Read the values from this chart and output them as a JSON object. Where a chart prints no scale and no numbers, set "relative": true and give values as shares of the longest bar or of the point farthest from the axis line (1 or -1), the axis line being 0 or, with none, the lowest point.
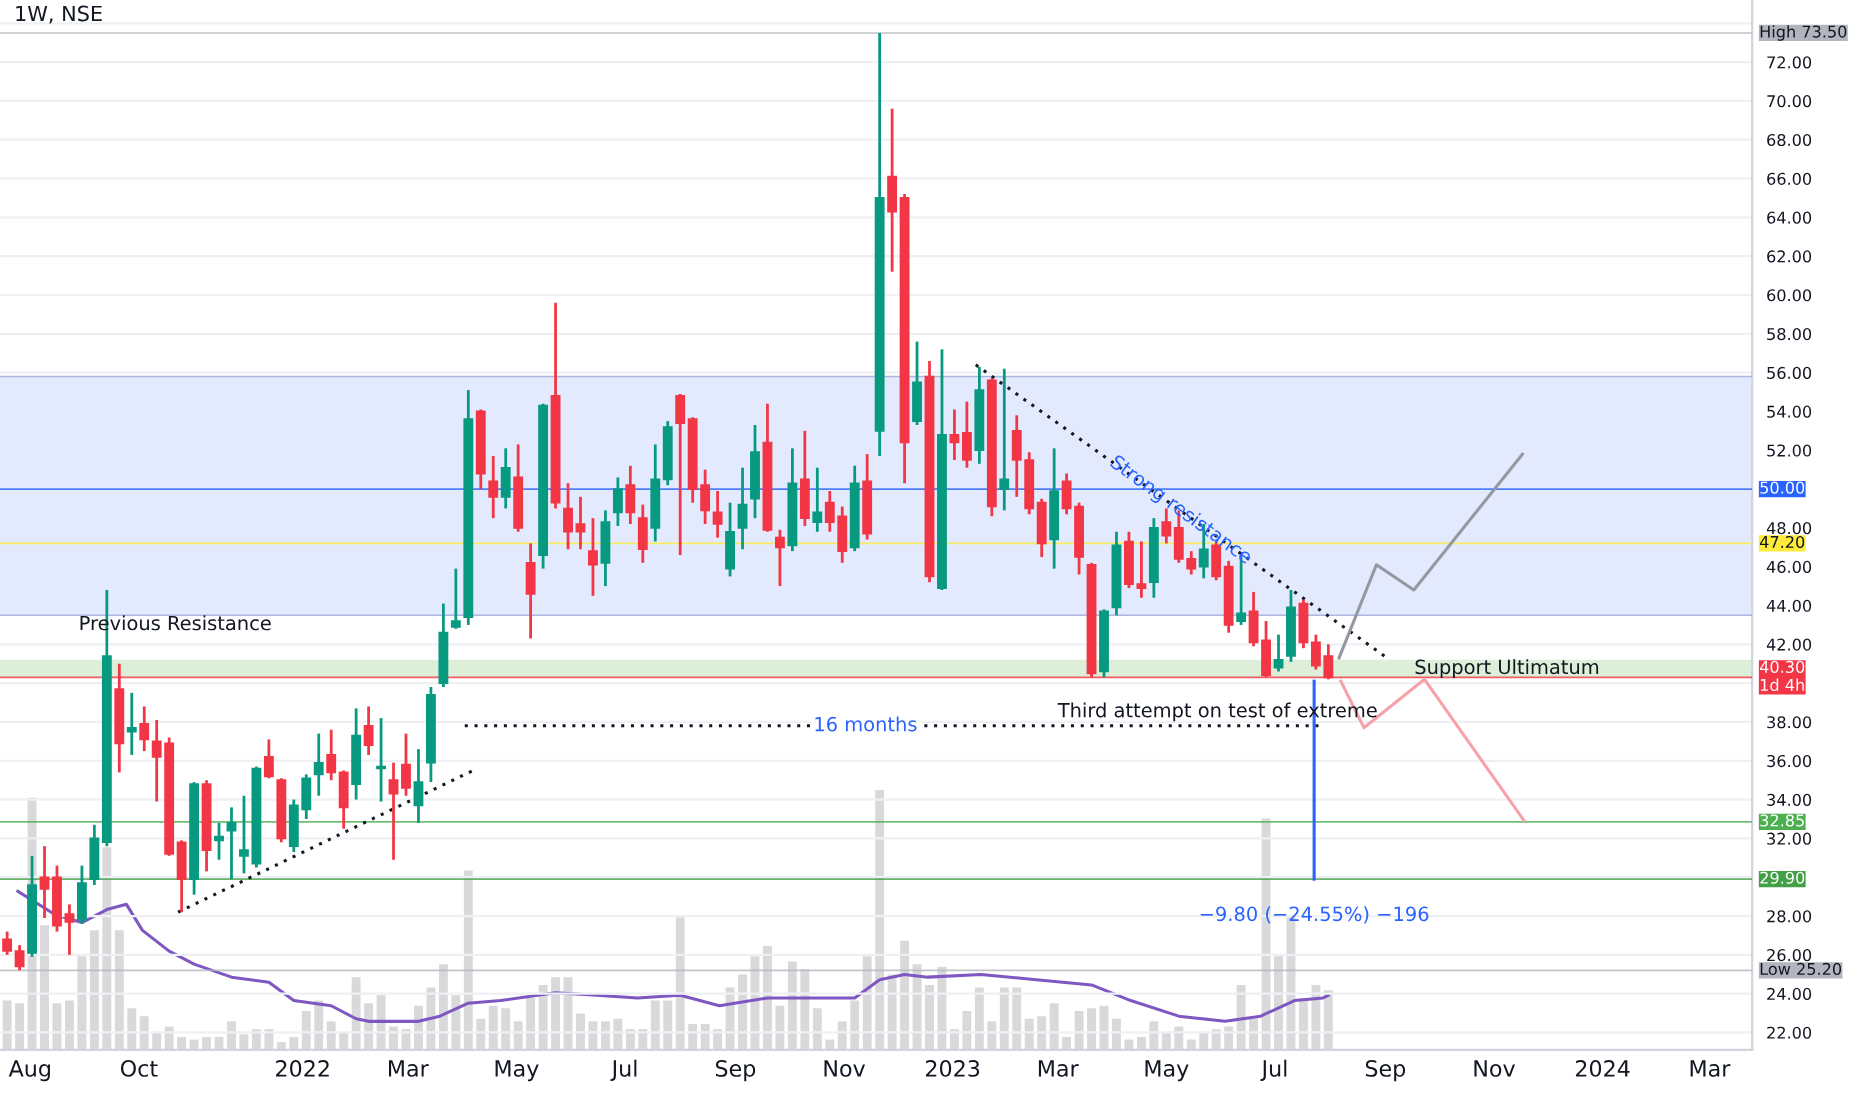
{
  "chart_data": [
    {
      "type": "candlestick",
      "title": "1W, NSE",
      "x": [
        "2021-07-19",
        "2021-07-26",
        "2021-08-02",
        "2021-08-09",
        "2021-08-16",
        "2021-08-23",
        "2021-08-30",
        "2021-09-06",
        "2021-09-13",
        "2021-09-20",
        "2021-09-27",
        "2021-10-04",
        "2021-10-11",
        "2021-10-18",
        "2021-10-25",
        "2021-11-01",
        "2021-11-08",
        "2021-11-15",
        "2021-11-22",
        "2021-11-29",
        "2021-12-06",
        "2021-12-13",
        "2021-12-20",
        "2021-12-27",
        "2022-01-03",
        "2022-01-10",
        "2022-01-17",
        "2022-01-24",
        "2022-01-31",
        "2022-02-07",
        "2022-02-14",
        "2022-02-21",
        "2022-02-28",
        "2022-03-07",
        "2022-03-14",
        "2022-03-21",
        "2022-03-28",
        "2022-04-04",
        "2022-04-11",
        "2022-04-18",
        "2022-04-25",
        "2022-05-02",
        "2022-05-09",
        "2022-05-16",
        "2022-05-23",
        "2022-05-30",
        "2022-06-06",
        "2022-06-13",
        "2022-06-20",
        "2022-06-27",
        "2022-07-04",
        "2022-07-11",
        "2022-07-18",
        "2022-07-25",
        "2022-08-01",
        "2022-08-08",
        "2022-08-15",
        "2022-08-22",
        "2022-08-29",
        "2022-09-05",
        "2022-09-12",
        "2022-09-19",
        "2022-09-26",
        "2022-10-03",
        "2022-10-10",
        "2022-10-17",
        "2022-10-24",
        "2022-10-31",
        "2022-11-07",
        "2022-11-14",
        "2022-11-21",
        "2022-11-28",
        "2022-12-05",
        "2022-12-12",
        "2022-12-19",
        "2022-12-26",
        "2023-01-02",
        "2023-01-09",
        "2023-01-16",
        "2023-01-23",
        "2023-01-30",
        "2023-02-06",
        "2023-02-13",
        "2023-02-20",
        "2023-02-27",
        "2023-03-06",
        "2023-03-13",
        "2023-03-20",
        "2023-03-27",
        "2023-04-03",
        "2023-04-10",
        "2023-04-17",
        "2023-04-24",
        "2023-05-01",
        "2023-05-08",
        "2023-05-15",
        "2023-05-22",
        "2023-05-29",
        "2023-06-05",
        "2023-06-12",
        "2023-06-19",
        "2023-06-26",
        "2023-07-03",
        "2023-07-10",
        "2023-07-17",
        "2023-07-24",
        "2023-07-31"
      ],
      "ohlc": [
        [
          26.8,
          27.2,
          26.0,
          26.2
        ],
        [
          26.2,
          26.5,
          25.2,
          25.4
        ],
        [
          26.1,
          31.1,
          25.9,
          29.6
        ],
        [
          30.0,
          31.6,
          27.9,
          29.4
        ],
        [
          30.0,
          30.6,
          27.2,
          27.5
        ],
        [
          28.1,
          28.6,
          26.0,
          27.7
        ],
        [
          27.8,
          30.6,
          27.6,
          29.7
        ],
        [
          29.9,
          32.7,
          29.6,
          32.0
        ],
        [
          31.8,
          44.8,
          31.6,
          41.4
        ],
        [
          39.7,
          41.0,
          35.4,
          36.9
        ],
        [
          37.5,
          39.5,
          36.3,
          37.7
        ],
        [
          37.9,
          38.8,
          36.5,
          37.1
        ],
        [
          37.0,
          38.1,
          33.9,
          36.2
        ],
        [
          36.9,
          37.2,
          31.1,
          31.2
        ],
        [
          31.8,
          31.9,
          28.2,
          29.9
        ],
        [
          29.9,
          34.9,
          29.1,
          34.8
        ],
        [
          34.8,
          35.0,
          30.3,
          31.4
        ],
        [
          31.9,
          32.8,
          30.9,
          32.1
        ],
        [
          32.4,
          33.6,
          29.9,
          32.8
        ],
        [
          31.1,
          34.2,
          30.2,
          31.4
        ],
        [
          30.7,
          35.7,
          30.5,
          35.6
        ],
        [
          36.2,
          37.1,
          35.1,
          35.2
        ],
        [
          35.0,
          35.1,
          31.8,
          32.0
        ],
        [
          31.6,
          34.0,
          31.3,
          33.7
        ],
        [
          33.5,
          35.3,
          33.0,
          35.1
        ],
        [
          35.3,
          37.4,
          34.2,
          35.9
        ],
        [
          36.3,
          37.6,
          35.0,
          35.4
        ],
        [
          35.4,
          35.5,
          32.5,
          33.6
        ],
        [
          34.8,
          38.7,
          34.0,
          37.3
        ],
        [
          37.8,
          38.8,
          36.3,
          36.8
        ],
        [
          35.6,
          38.2,
          33.9,
          35.7
        ],
        [
          35.0,
          35.9,
          30.9,
          34.3
        ],
        [
          35.8,
          37.4,
          34.2,
          34.6
        ],
        [
          33.7,
          36.6,
          32.8,
          34.9
        ],
        [
          35.9,
          39.8,
          34.9,
          39.4
        ],
        [
          40.0,
          44.1,
          39.8,
          42.6
        ],
        [
          42.9,
          45.9,
          42.8,
          43.2
        ],
        [
          43.4,
          55.1,
          43.0,
          53.6
        ],
        [
          54.0,
          54.1,
          50.0,
          50.8
        ],
        [
          50.4,
          51.7,
          48.5,
          49.6
        ],
        [
          49.6,
          52.1,
          49.0,
          51.1
        ],
        [
          50.6,
          52.3,
          47.8,
          48.0
        ],
        [
          46.2,
          47.2,
          42.3,
          44.6
        ],
        [
          46.6,
          54.4,
          45.9,
          54.3
        ],
        [
          54.8,
          59.6,
          49.0,
          49.3
        ],
        [
          49.0,
          50.3,
          46.9,
          47.8
        ],
        [
          48.2,
          49.6,
          46.9,
          47.8
        ],
        [
          46.8,
          48.5,
          44.5,
          46.1
        ],
        [
          46.2,
          48.9,
          45.0,
          48.3
        ],
        [
          48.8,
          50.6,
          48.1,
          50.0
        ],
        [
          50.2,
          51.2,
          48.2,
          48.8
        ],
        [
          48.5,
          49.2,
          46.2,
          46.9
        ],
        [
          48.0,
          52.3,
          47.3,
          50.5
        ],
        [
          50.5,
          53.5,
          50.2,
          53.2
        ],
        [
          54.8,
          54.9,
          46.6,
          53.4
        ],
        [
          53.6,
          53.7,
          49.3,
          50.0
        ],
        [
          50.2,
          51.0,
          48.2,
          48.9
        ],
        [
          48.8,
          49.9,
          47.5,
          48.2
        ],
        [
          45.9,
          49.3,
          45.5,
          47.8
        ],
        [
          48.0,
          51.1,
          46.9,
          49.2
        ],
        [
          49.5,
          53.3,
          48.5,
          51.9
        ],
        [
          52.4,
          54.4,
          47.8,
          47.9
        ],
        [
          47.5,
          47.9,
          45.0,
          47.0
        ],
        [
          47.1,
          52.1,
          46.8,
          50.3
        ],
        [
          50.5,
          53.0,
          48.1,
          48.5
        ],
        [
          48.3,
          51.1,
          47.8,
          48.8
        ],
        [
          49.3,
          49.9,
          47.8,
          48.3
        ],
        [
          48.6,
          49.1,
          46.2,
          46.8
        ],
        [
          47.0,
          51.2,
          46.8,
          50.3
        ],
        [
          50.4,
          51.8,
          47.4,
          47.7
        ],
        [
          53.0,
          73.5,
          51.7,
          65.0
        ],
        [
          66.1,
          69.6,
          61.2,
          64.3
        ],
        [
          65.0,
          65.2,
          50.3,
          52.4
        ],
        [
          53.5,
          57.6,
          53.3,
          55.5
        ],
        [
          55.8,
          56.6,
          45.2,
          45.5
        ],
        [
          44.9,
          57.2,
          44.8,
          52.8
        ],
        [
          52.8,
          54.1,
          51.5,
          52.4
        ],
        [
          52.9,
          54.5,
          51.1,
          51.5
        ],
        [
          52.0,
          56.3,
          51.3,
          55.1
        ],
        [
          55.6,
          55.7,
          48.6,
          49.1
        ],
        [
          50.0,
          56.2,
          48.9,
          50.5
        ],
        [
          53.0,
          53.8,
          49.6,
          51.5
        ],
        [
          51.5,
          51.9,
          48.7,
          49.0
        ],
        [
          49.3,
          49.5,
          46.5,
          47.2
        ],
        [
          47.4,
          52.1,
          45.9,
          49.9
        ],
        [
          50.4,
          50.8,
          48.7,
          49.0
        ],
        [
          49.1,
          49.3,
          45.6,
          46.5
        ],
        [
          46.1,
          46.2,
          40.3,
          40.5
        ],
        [
          40.6,
          43.8,
          40.3,
          43.7
        ],
        [
          43.9,
          47.8,
          43.5,
          47.1
        ],
        [
          47.3,
          47.8,
          44.9,
          45.1
        ],
        [
          45.1,
          47.3,
          44.4,
          44.9
        ],
        [
          45.2,
          48.5,
          44.4,
          48.0
        ],
        [
          48.3,
          49.0,
          47.2,
          47.6
        ],
        [
          48.0,
          48.9,
          46.2,
          46.4
        ],
        [
          46.4,
          46.8,
          45.6,
          45.9
        ],
        [
          46.0,
          48.2,
          45.4,
          46.9
        ],
        [
          47.1,
          47.3,
          45.3,
          45.5
        ],
        [
          46.0,
          46.3,
          42.6,
          43.0
        ],
        [
          43.2,
          46.6,
          43.0,
          43.6
        ],
        [
          43.7,
          44.7,
          41.9,
          42.1
        ],
        [
          42.2,
          43.2,
          40.3,
          40.4
        ],
        [
          40.8,
          42.5,
          40.6,
          41.2
        ],
        [
          41.4,
          44.8,
          41.1,
          43.9
        ],
        [
          44.1,
          44.3,
          41.8,
          42.1
        ],
        [
          42.1,
          42.5,
          40.7,
          40.9
        ],
        [
          41.4,
          42.0,
          40.2,
          40.3
        ]
      ],
      "colors": [
        "#f23645",
        "#f23645",
        "#089981",
        "#f23645",
        "#f23645",
        "#f23645",
        "#089981",
        "#089981",
        "#089981",
        "#f23645",
        "#089981",
        "#f23645",
        "#f23645",
        "#f23645",
        "#f23645",
        "#089981",
        "#f23645",
        "#089981",
        "#089981",
        "#089981",
        "#089981",
        "#f23645",
        "#f23645",
        "#089981",
        "#089981",
        "#089981",
        "#f23645",
        "#f23645",
        "#089981",
        "#f23645",
        "#089981",
        "#f23645",
        "#f23645",
        "#089981",
        "#089981",
        "#089981",
        "#089981",
        "#089981",
        "#f23645",
        "#f23645",
        "#089981",
        "#f23645",
        "#f23645",
        "#089981",
        "#f23645",
        "#f23645",
        "#f23645",
        "#f23645",
        "#089981",
        "#089981",
        "#f23645",
        "#f23645",
        "#089981",
        "#089981",
        "#f23645",
        "#f23645",
        "#f23645",
        "#f23645",
        "#089981",
        "#089981",
        "#089981",
        "#f23645",
        "#f23645",
        "#089981",
        "#f23645",
        "#089981",
        "#f23645",
        "#f23645",
        "#089981",
        "#f23645",
        "#089981",
        "#f23645",
        "#f23645",
        "#089981",
        "#f23645",
        "#089981",
        "#f23645",
        "#f23645",
        "#089981",
        "#f23645",
        "#089981",
        "#f23645",
        "#f23645",
        "#f23645",
        "#089981",
        "#f23645",
        "#f23645",
        "#f23645",
        "#089981",
        "#089981",
        "#f23645",
        "#f23645",
        "#089981",
        "#f23645",
        "#f23645",
        "#f23645",
        "#089981",
        "#f23645",
        "#f23645",
        "#089981",
        "#f23645",
        "#f23645",
        "#089981",
        "#089981",
        "#f23645",
        "#f23645",
        "#f23645"
      ],
      "series": [
        {
          "type": "line",
          "x": [
            "2021-10-23",
            "2022-04-09"
          ],
          "values": [
            28.2,
            35.6
          ],
          "color": "#131722",
          "line_style": "dotted"
        },
        {
          "type": "line",
          "x": [
            "2023-01-14",
            "2023-09-02"
          ],
          "values": [
            56.4,
            41.3
          ],
          "color": "#131722",
          "line_style": "dotted"
        },
        {
          "type": "line",
          "x": [
            "2022-04-02",
            "2023-07-28"
          ],
          "values": [
            37.8,
            37.8
          ],
          "color": "#131722",
          "line_style": "dotted"
        },
        {
          "type": "line",
          "x": [
            "2023-08-06",
            "2023-08-27",
            "2023-09-17",
            "2023-11-17"
          ],
          "values": [
            41.3,
            46.1,
            44.8,
            51.8
          ],
          "color": "#9598a1",
          "line_style": "solid"
        },
        {
          "type": "line",
          "x": [
            "2023-08-07",
            "2023-08-20",
            "2023-09-23",
            "2023-11-18"
          ],
          "values": [
            40.1,
            37.7,
            40.2,
            32.9
          ],
          "color": "#f7a1a8",
          "line_style": "solid"
        },
        {
          "type": "line",
          "x": [
            "2023-07-23",
            "2023-07-23"
          ],
          "values": [
            40.1,
            29.9
          ],
          "color": "#2962ff",
          "line_style": "solid"
        }
      ],
      "bands": [
        {
          "axis": "y",
          "from": 43.5,
          "to": 55.8,
          "label": null,
          "color": "#e3eafd"
        },
        {
          "axis": "y",
          "from": 40.3,
          "to": 41.2,
          "label": "Support Ultimatum",
          "color": "#deefd9"
        }
      ],
      "ref_lines": [
        {
          "axis": "y",
          "value": 55.8,
          "label": null,
          "color": "#9aa6d8"
        },
        {
          "axis": "y",
          "value": 43.5,
          "label": null,
          "color": "#9aa6d8"
        },
        {
          "axis": "y",
          "value": 73.5,
          "label": "High 73.50",
          "color": "#b2b5be"
        },
        {
          "axis": "y",
          "value": 50.0,
          "label": "50.00",
          "color": "#2962ff"
        },
        {
          "axis": "y",
          "value": 47.2,
          "label": "47.20",
          "color": "#ffeb3b"
        },
        {
          "axis": "y",
          "value": 40.3,
          "label": "40.30\n1d 4h",
          "color": "#f23645"
        },
        {
          "axis": "y",
          "value": 32.85,
          "label": "32.85",
          "color": "#4caf50"
        },
        {
          "axis": "y",
          "value": 29.9,
          "label": "29.90",
          "color": "#43a047"
        },
        {
          "axis": "y",
          "value": 25.2,
          "label": "Low 25.20",
          "color": "#b2b5be"
        }
      ],
      "annotations": [
        "Previous Resistance",
        {
          "text": "16 months",
          "x": "2022-11-13",
          "y": 37.8
        },
        "Third attempt on test of extreme",
        {
          "text": "Strong resistance",
          "x": "2023-05-09",
          "y": 48.9
        },
        "−9.80 (−24.55%) −196"
      ],
      "xlim": [
        "2021-07-15",
        "2024-03-25"
      ],
      "xticks": [
        {
          "value": "2021-08-01",
          "label": "Aug"
        },
        {
          "value": "2021-10-01",
          "label": "Oct"
        },
        {
          "value": "2022-01-01",
          "label": "2022"
        },
        {
          "value": "2022-03-01",
          "label": "Mar"
        },
        {
          "value": "2022-05-01",
          "label": "May"
        },
        {
          "value": "2022-07-01",
          "label": "Jul"
        },
        {
          "value": "2022-09-01",
          "label": "Sep"
        },
        {
          "value": "2022-11-01",
          "label": "Nov"
        },
        {
          "value": "2023-01-01",
          "label": "2023"
        },
        {
          "value": "2023-03-01",
          "label": "Mar"
        },
        {
          "value": "2023-05-01",
          "label": "May"
        },
        {
          "value": "2023-07-01",
          "label": "Jul"
        },
        {
          "value": "2023-09-01",
          "label": "Sep"
        },
        {
          "value": "2023-11-01",
          "label": "Nov"
        },
        {
          "value": "2024-01-01",
          "label": "2024"
        },
        {
          "value": "2024-03-01",
          "label": "Mar"
        }
      ],
      "ylim": [
        21.1,
        75.2
      ],
      "yticks": [
        {
          "value": 22,
          "label": "22.00"
        },
        {
          "value": 24,
          "label": "24.00"
        },
        {
          "value": 26,
          "label": "26.00"
        },
        {
          "value": 28,
          "label": "28.00"
        },
        {
          "value": 30,
          "label": null
        },
        {
          "value": 32,
          "label": "32.00"
        },
        {
          "value": 34,
          "label": "34.00"
        },
        {
          "value": 36,
          "label": "36.00"
        },
        {
          "value": 38,
          "label": "38.00"
        },
        {
          "value": 40,
          "label": null
        },
        {
          "value": 42,
          "label": "42.00"
        },
        {
          "value": 44,
          "label": "44.00"
        },
        {
          "value": 46,
          "label": "46.00"
        },
        {
          "value": 48,
          "label": "48.00"
        },
        {
          "value": 50,
          "label": null
        },
        {
          "value": 52,
          "label": "52.00"
        },
        {
          "value": 54,
          "label": "54.00"
        },
        {
          "value": 56,
          "label": "56.00"
        },
        {
          "value": 58,
          "label": "58.00"
        },
        {
          "value": 60,
          "label": "60.00"
        },
        {
          "value": 62,
          "label": "62.00"
        },
        {
          "value": 64,
          "label": "64.00"
        },
        {
          "value": 66,
          "label": "66.00"
        },
        {
          "value": 68,
          "label": "68.00"
        },
        {
          "value": 70,
          "label": "70.00"
        },
        {
          "value": 72,
          "label": "72.00"
        },
        {
          "value": 74,
          "label": null
        }
      ],
      "grid": "y",
      "legend": false
    },
    {
      "type": "bar",
      "relative": true,
      "xlim": [
        "2021-07-15",
        "2024-03-25"
      ],
      "grid": false,
      "legend": false,
      "x": [
        "2021-07-19",
        "2021-07-26",
        "2021-08-02",
        "2021-08-09",
        "2021-08-16",
        "2021-08-23",
        "2021-08-30",
        "2021-09-06",
        "2021-09-13",
        "2021-09-20",
        "2021-09-27",
        "2021-10-04",
        "2021-10-11",
        "2021-10-18",
        "2021-10-25",
        "2021-11-01",
        "2021-11-08",
        "2021-11-15",
        "2021-11-22",
        "2021-11-29",
        "2021-12-06",
        "2021-12-13",
        "2021-12-20",
        "2021-12-27",
        "2022-01-03",
        "2022-01-10",
        "2022-01-17",
        "2022-01-24",
        "2022-01-31",
        "2022-02-07",
        "2022-02-14",
        "2022-02-21",
        "2022-02-28",
        "2022-03-07",
        "2022-03-14",
        "2022-03-21",
        "2022-03-28",
        "2022-04-04",
        "2022-04-11",
        "2022-04-18",
        "2022-04-25",
        "2022-05-02",
        "2022-05-09",
        "2022-05-16",
        "2022-05-23",
        "2022-05-30",
        "2022-06-06",
        "2022-06-13",
        "2022-06-20",
        "2022-06-27",
        "2022-07-04",
        "2022-07-11",
        "2022-07-18",
        "2022-07-25",
        "2022-08-01",
        "2022-08-08",
        "2022-08-15",
        "2022-08-22",
        "2022-08-29",
        "2022-09-05",
        "2022-09-12",
        "2022-09-19",
        "2022-09-26",
        "2022-10-03",
        "2022-10-10",
        "2022-10-17",
        "2022-10-24",
        "2022-10-31",
        "2022-11-07",
        "2022-11-14",
        "2022-11-21",
        "2022-11-28",
        "2022-12-05",
        "2022-12-12",
        "2022-12-19",
        "2022-12-26",
        "2023-01-02",
        "2023-01-09",
        "2023-01-16",
        "2023-01-23",
        "2023-01-30",
        "2023-02-06",
        "2023-02-13",
        "2023-02-20",
        "2023-02-27",
        "2023-03-06",
        "2023-03-13",
        "2023-03-20",
        "2023-03-27",
        "2023-04-03",
        "2023-04-10",
        "2023-04-17",
        "2023-04-24",
        "2023-05-01",
        "2023-05-08",
        "2023-05-15",
        "2023-05-22",
        "2023-05-29",
        "2023-06-05",
        "2023-06-12",
        "2023-06-19",
        "2023-06-26",
        "2023-07-03",
        "2023-07-10",
        "2023-07-17",
        "2023-07-24",
        "2023-07-31"
      ],
      "series": [
        {
          "type": "bar",
          "color": "#d9d9db",
          "values": [
            0.19,
            0.18,
            0.97,
            0.48,
            0.18,
            0.19,
            0.36,
            0.46,
            0.78,
            0.46,
            0.16,
            0.13,
            0.07,
            0.09,
            0.05,
            0.04,
            0.05,
            0.05,
            0.11,
            0.06,
            0.08,
            0.08,
            0.03,
            0.05,
            0.15,
            0.19,
            0.11,
            0.07,
            0.28,
            0.18,
            0.21,
            0.09,
            0.08,
            0.17,
            0.24,
            0.33,
            0.21,
            0.69,
            0.12,
            0.17,
            0.16,
            0.11,
            0.2,
            0.25,
            0.28,
            0.28,
            0.14,
            0.11,
            0.11,
            0.12,
            0.08,
            0.08,
            0.19,
            0.19,
            0.51,
            0.1,
            0.1,
            0.08,
            0.24,
            0.29,
            0.36,
            0.4,
            0.17,
            0.34,
            0.31,
            0.16,
            0.04,
            0.11,
            0.19,
            0.36,
            1.0,
            0.29,
            0.42,
            0.33,
            0.25,
            0.32,
            0.08,
            0.15,
            0.24,
            0.11,
            0.24,
            0.24,
            0.12,
            0.13,
            0.18,
            0.05,
            0.15,
            0.16,
            0.17,
            0.12,
            0.04,
            0.05,
            0.11,
            0.07,
            0.09,
            0.04,
            0.07,
            0.08,
            0.09,
            0.25,
            0.12,
            0.89,
            0.36,
            0.51,
            0.2,
            0.25,
            0.23
          ]
        },
        {
          "type": "line",
          "color": "#7e57c2",
          "x": [
            "2021-07-25",
            "2021-08-15",
            "2021-08-30",
            "2021-09-13",
            "2021-09-24",
            "2021-10-03",
            "2021-10-18",
            "2021-11-01",
            "2021-11-22",
            "2021-12-13",
            "2021-12-27",
            "2022-01-17",
            "2022-01-31",
            "2022-02-07",
            "2022-03-07",
            "2022-03-19",
            "2022-04-04",
            "2022-04-22",
            "2022-05-23",
            "2022-06-15",
            "2022-07-08",
            "2022-08-01",
            "2022-08-23",
            "2022-09-19",
            "2022-10-15",
            "2022-11-07",
            "2022-11-21",
            "2022-12-05",
            "2022-12-18",
            "2023-01-17",
            "2023-02-17",
            "2023-03-20",
            "2023-04-11",
            "2023-05-08",
            "2023-06-03",
            "2023-06-23",
            "2023-07-12",
            "2023-07-28",
            "2023-07-31"
          ],
          "values": [
            0.61,
            0.52,
            0.49,
            0.54,
            0.56,
            0.46,
            0.38,
            0.33,
            0.28,
            0.26,
            0.19,
            0.17,
            0.12,
            0.11,
            0.11,
            0.13,
            0.18,
            0.19,
            0.22,
            0.21,
            0.2,
            0.21,
            0.17,
            0.2,
            0.2,
            0.2,
            0.27,
            0.29,
            0.28,
            0.29,
            0.27,
            0.25,
            0.19,
            0.13,
            0.11,
            0.13,
            0.19,
            0.2,
            0.21
          ]
        }
      ]
    }
  ]
}
